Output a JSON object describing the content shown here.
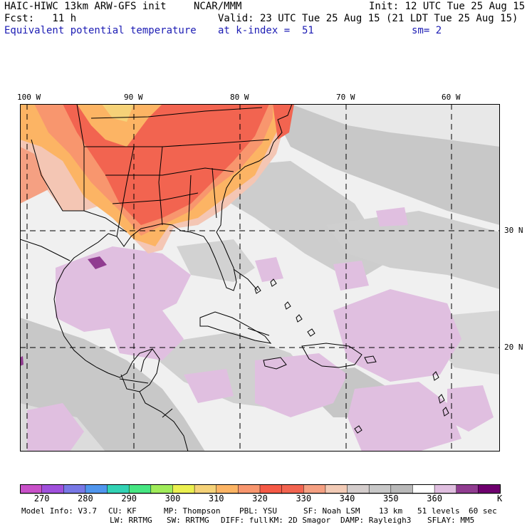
{
  "header": {
    "title_left": "HAIC-HIWC 13km ARW-GFS init",
    "title_mid": "NCAR/MMM",
    "init": "Init: 12 UTC Tue 25 Aug 15",
    "fcst": "Fcst:   11 h",
    "valid": "Valid: 23 UTC Tue 25 Aug 15 (21 LDT Tue 25 Aug 15)",
    "field": "Equivalent potential temperature",
    "level": "at k-index =  51",
    "smooth": "sm= 2"
  },
  "map": {
    "lon_labels": [
      "100 W",
      "90 W",
      "80 W",
      "70 W",
      "60 W"
    ],
    "lat_labels": [
      "30 N",
      "20 N"
    ],
    "gridline_style": "dashed",
    "coastline_color": "#000000"
  },
  "colorbar": {
    "labels": [
      "270",
      "280",
      "290",
      "300",
      "310",
      "320",
      "330",
      "340",
      "350",
      "360"
    ],
    "unit": "K",
    "colors": [
      "#c850c8",
      "#a050dc",
      "#7878e6",
      "#5096ee",
      "#32d2b4",
      "#46e682",
      "#a0ec5a",
      "#ebf050",
      "#f5d278",
      "#fcb464",
      "#f8966e",
      "#f55a46",
      "#f26450",
      "#f5a082",
      "#f2cbb6",
      "#d4cdcc",
      "#c8c8c8",
      "#b9b9b9",
      "#ffffff",
      "#e0bfe0",
      "#903c90",
      "#6e006e"
    ]
  },
  "footer": {
    "line1": [
      "Model Info: V3.7",
      "CU: KF",
      "MP: Thompson",
      "PBL: YSU",
      "SF: Noah LSM",
      "13 km",
      "51 levels",
      "60 sec"
    ],
    "line2": [
      "LW: RRTMG",
      "SW: RRTMG",
      "DIFF: full",
      "KM: 2D Smagor",
      "DAMP: Rayleigh3",
      "SFLAY: MM5"
    ]
  }
}
